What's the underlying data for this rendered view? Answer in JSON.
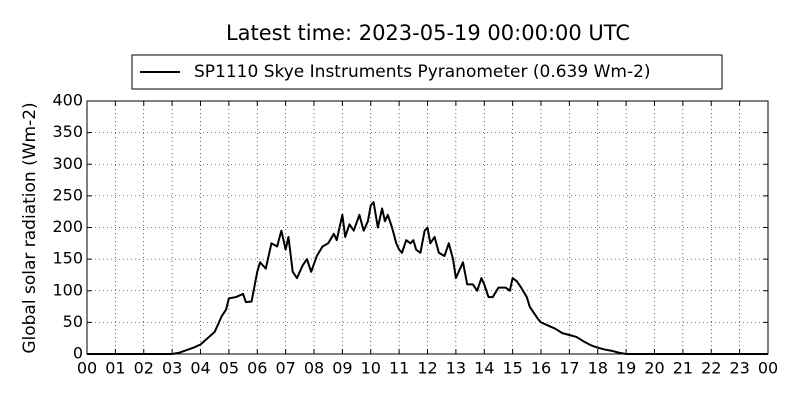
{
  "chart_data": {
    "type": "line",
    "title": "Latest time: 2023-05-19 00:00:00 UTC",
    "ylabel": "Global solar radiation (Wm-2)",
    "xlim": [
      0,
      24
    ],
    "ylim": [
      0,
      400
    ],
    "xticks": [
      {
        "value": 0,
        "label": "00"
      },
      {
        "value": 1,
        "label": "01"
      },
      {
        "value": 2,
        "label": "02"
      },
      {
        "value": 3,
        "label": "03"
      },
      {
        "value": 4,
        "label": "04"
      },
      {
        "value": 5,
        "label": "05"
      },
      {
        "value": 6,
        "label": "06"
      },
      {
        "value": 7,
        "label": "07"
      },
      {
        "value": 8,
        "label": "08"
      },
      {
        "value": 9,
        "label": "09"
      },
      {
        "value": 10,
        "label": "10"
      },
      {
        "value": 11,
        "label": "11"
      },
      {
        "value": 12,
        "label": "12"
      },
      {
        "value": 13,
        "label": "13"
      },
      {
        "value": 14,
        "label": "14"
      },
      {
        "value": 15,
        "label": "15"
      },
      {
        "value": 16,
        "label": "16"
      },
      {
        "value": 17,
        "label": "17"
      },
      {
        "value": 18,
        "label": "18"
      },
      {
        "value": 19,
        "label": "19"
      },
      {
        "value": 20,
        "label": "20"
      },
      {
        "value": 21,
        "label": "21"
      },
      {
        "value": 22,
        "label": "22"
      },
      {
        "value": 23,
        "label": "23"
      },
      {
        "value": 24,
        "label": "00"
      }
    ],
    "yticks": [
      0,
      50,
      100,
      150,
      200,
      250,
      300,
      350,
      400
    ],
    "grid": true,
    "legend": "upper center",
    "x": [
      0,
      1,
      2,
      3,
      3.25,
      3.5,
      3.75,
      4,
      4.25,
      4.5,
      4.75,
      4.9,
      5,
      5.25,
      5.5,
      5.6,
      5.8,
      6,
      6.1,
      6.3,
      6.5,
      6.7,
      6.85,
      7,
      7.1,
      7.25,
      7.4,
      7.6,
      7.75,
      7.9,
      8.1,
      8.3,
      8.5,
      8.7,
      8.8,
      9,
      9.1,
      9.25,
      9.4,
      9.6,
      9.75,
      9.9,
      10,
      10.1,
      10.25,
      10.4,
      10.5,
      10.6,
      10.75,
      10.9,
      11,
      11.1,
      11.25,
      11.4,
      11.5,
      11.6,
      11.75,
      11.9,
      12,
      12.1,
      12.25,
      12.4,
      12.6,
      12.75,
      12.9,
      13,
      13.1,
      13.25,
      13.4,
      13.6,
      13.75,
      13.9,
      14,
      14.15,
      14.3,
      14.5,
      14.75,
      14.9,
      15,
      15.15,
      15.3,
      15.5,
      15.6,
      15.75,
      15.9,
      16,
      16.25,
      16.5,
      16.75,
      17,
      17.25,
      17.5,
      17.75,
      18,
      18.25,
      18.5,
      18.75,
      19,
      20,
      22,
      24
    ],
    "series": [
      {
        "name": "SP1110 Skye Instruments Pyranometer (0.639 Wm-2)",
        "color": "#000000",
        "values": [
          0,
          0,
          0,
          0,
          2,
          6,
          10,
          15,
          25,
          35,
          60,
          70,
          88,
          90,
          95,
          82,
          83,
          130,
          145,
          135,
          175,
          170,
          195,
          165,
          185,
          130,
          120,
          140,
          150,
          130,
          155,
          170,
          175,
          190,
          180,
          220,
          185,
          205,
          195,
          220,
          195,
          210,
          235,
          240,
          200,
          230,
          210,
          220,
          200,
          175,
          165,
          160,
          180,
          175,
          180,
          165,
          160,
          195,
          200,
          175,
          185,
          160,
          155,
          175,
          150,
          120,
          130,
          145,
          110,
          110,
          100,
          120,
          110,
          90,
          90,
          105,
          105,
          100,
          120,
          115,
          105,
          90,
          75,
          65,
          55,
          50,
          45,
          40,
          33,
          30,
          27,
          20,
          14,
          10,
          7,
          5,
          2,
          0,
          0,
          0,
          0
        ]
      }
    ]
  }
}
